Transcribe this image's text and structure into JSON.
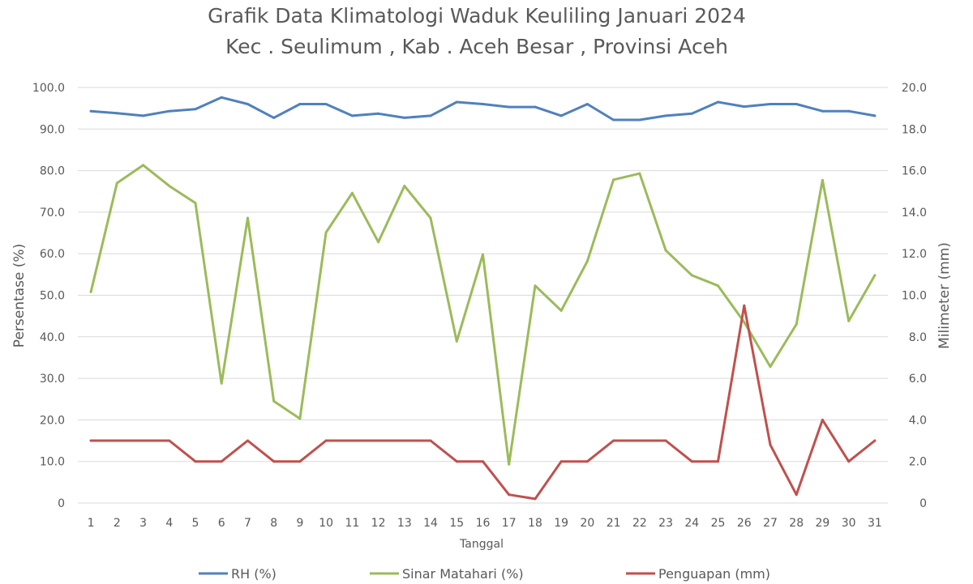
{
  "chart_data": {
    "type": "line",
    "title_lines": [
      "Grafik Data Klimatologi Waduk Keuliling Januari 2024",
      "Kec . Seulimum , Kab . Aceh Besar , Provinsi  Aceh"
    ],
    "xlabel": "Tanggal",
    "ylabel_left": "Persentase (%)",
    "ylabel_right": "Milimeter (mm)",
    "ylim_left": [
      0,
      100
    ],
    "ylim_right": [
      0,
      20
    ],
    "y_ticks_left": [
      "0",
      "10.0",
      "20.0",
      "30.0",
      "40.0",
      "50.0",
      "60.0",
      "70.0",
      "80.0",
      "90.0",
      "100.0"
    ],
    "y_ticks_right": [
      "0",
      "2.0",
      "4.0",
      "6.0",
      "8.0",
      "10.0",
      "12.0",
      "14.0",
      "16.0",
      "18.0",
      "20.0"
    ],
    "categories": [
      "1",
      "2",
      "3",
      "4",
      "5",
      "6",
      "7",
      "8",
      "9",
      "10",
      "11",
      "12",
      "13",
      "14",
      "15",
      "16",
      "17",
      "18",
      "19",
      "20",
      "21",
      "22",
      "23",
      "24",
      "25",
      "26",
      "27",
      "28",
      "29",
      "30",
      "31"
    ],
    "grid": true,
    "legend_position": "bottom",
    "series": [
      {
        "name": "RH (%)",
        "axis": "left",
        "color": "#4f81bd",
        "values": [
          94.3,
          93.8,
          93.2,
          94.3,
          94.8,
          97.6,
          96.0,
          92.7,
          96.0,
          96.0,
          93.2,
          93.7,
          92.7,
          93.2,
          96.5,
          96.0,
          95.3,
          95.3,
          93.2,
          96.0,
          92.2,
          92.2,
          93.2,
          93.7,
          96.5,
          95.4,
          96.0,
          96.0,
          94.3,
          94.3,
          93.2
        ]
      },
      {
        "name": "Sinar Matahari (%)",
        "axis": "left",
        "color": "#9bbb59",
        "values": [
          50.8,
          77.0,
          81.3,
          76.3,
          72.2,
          28.8,
          68.6,
          24.5,
          20.3,
          65.1,
          74.6,
          62.8,
          76.3,
          68.6,
          38.9,
          59.8,
          9.3,
          52.3,
          46.3,
          58.2,
          77.8,
          79.3,
          60.8,
          54.8,
          52.3,
          43.5,
          32.8,
          43.0,
          77.7,
          43.8,
          54.8
        ]
      },
      {
        "name": "Penguapan (mm)",
        "axis": "right",
        "color": "#c0504d",
        "values": [
          3.0,
          3.0,
          3.0,
          3.0,
          2.0,
          2.0,
          3.0,
          2.0,
          2.0,
          3.0,
          3.0,
          3.0,
          3.0,
          3.0,
          2.0,
          2.0,
          0.4,
          0.2,
          2.0,
          2.0,
          3.0,
          3.0,
          3.0,
          2.0,
          2.0,
          9.5,
          2.8,
          0.4,
          4.0,
          2.0,
          3.0
        ]
      }
    ]
  }
}
